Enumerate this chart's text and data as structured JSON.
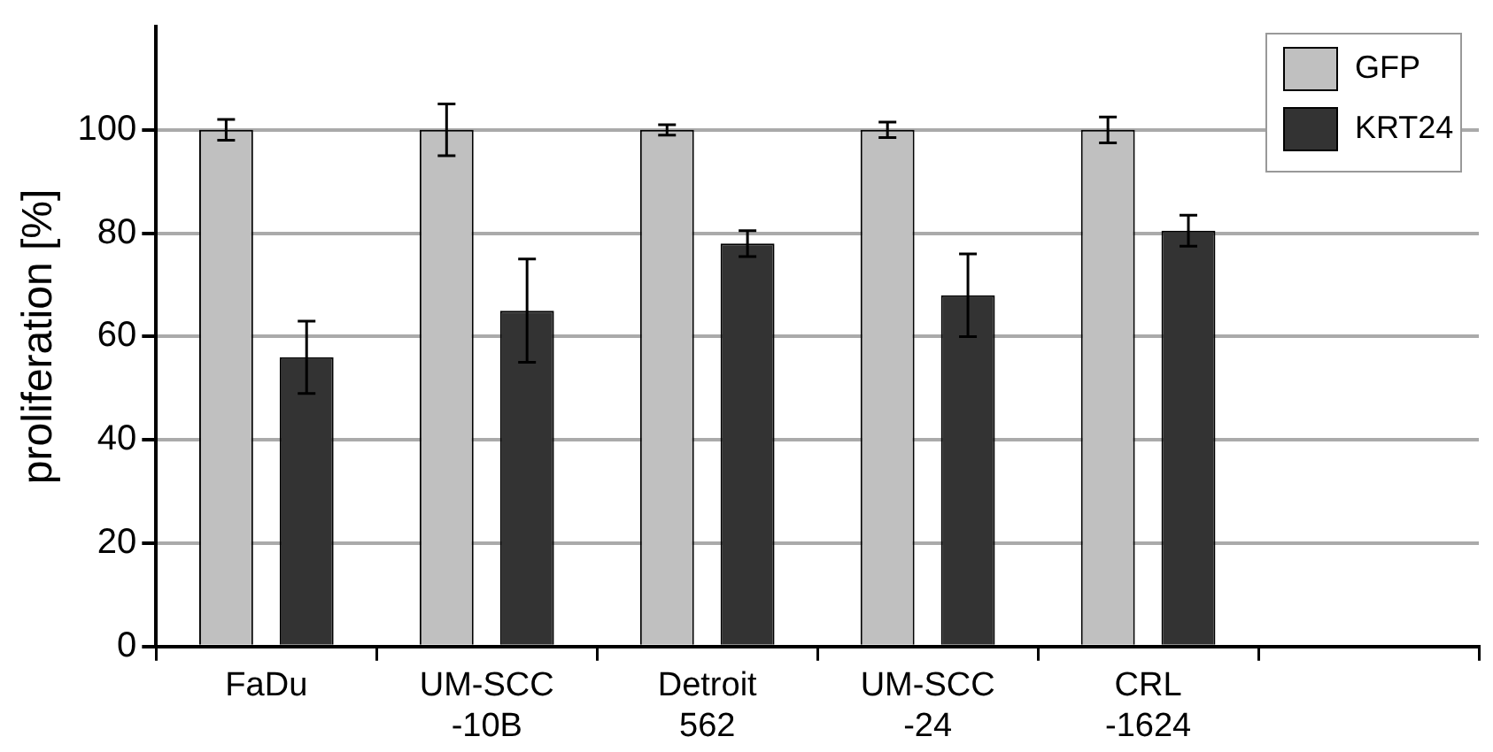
{
  "chart_data": {
    "type": "bar",
    "ylabel": "proliferation [%]",
    "categories": [
      "FaDu",
      "UM-SCC -10B",
      "Detroit 562",
      "UM-SCC -24",
      "CRL -1624",
      null
    ],
    "series": [
      {
        "name": "GFP",
        "color": "#c0c0c0",
        "values": [
          100,
          100,
          100,
          100,
          100,
          null
        ],
        "errors": [
          2,
          5,
          1,
          1.5,
          2.5,
          null
        ]
      },
      {
        "name": "KRT24",
        "color": "#333333",
        "values": [
          56,
          65,
          78,
          68,
          80.5,
          null
        ],
        "errors": [
          7,
          10,
          2.5,
          8,
          3,
          null
        ]
      }
    ],
    "ylim": [
      0,
      120
    ],
    "yticks": [
      0,
      20,
      40,
      60,
      80,
      100
    ],
    "grid": "y",
    "legend": "top right"
  }
}
